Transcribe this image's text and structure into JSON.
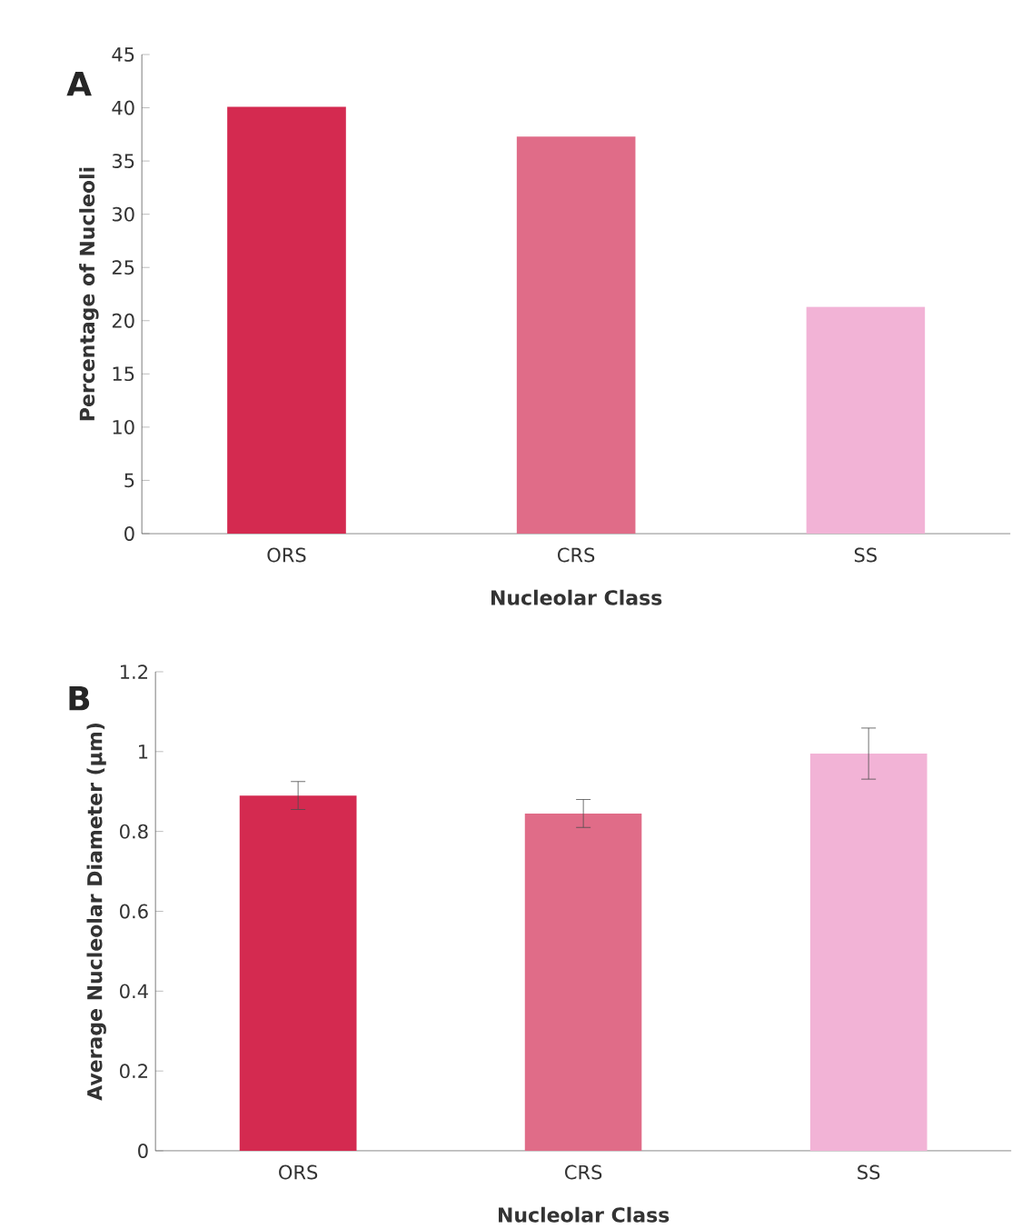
{
  "chart_data": [
    {
      "type": "bar",
      "categories": [
        "ORS",
        "CRS",
        "SS"
      ],
      "values": [
        40.1,
        37.3,
        21.3
      ],
      "colors": [
        "#d42a50",
        "#e06c88",
        "#f2b3d6"
      ],
      "xlabel": "Nucleolar Class",
      "ylabel": "Percentage of Nucleoli",
      "ylim": [
        0,
        45
      ],
      "yticks": [
        0,
        5,
        10,
        15,
        20,
        25,
        30,
        35,
        40,
        45
      ],
      "annotations": [
        "A"
      ]
    },
    {
      "type": "bar",
      "categories": [
        "ORS",
        "CRS",
        "SS"
      ],
      "values": [
        0.89,
        0.845,
        0.995
      ],
      "errors": [
        0.035,
        0.035,
        0.064
      ],
      "colors": [
        "#d42a50",
        "#e06c88",
        "#f2b3d6"
      ],
      "xlabel": "Nucleolar Class",
      "ylabel": "Average Nucleolar Diameter (µm)",
      "ylim": [
        0,
        1.2
      ],
      "yticks": [
        0,
        0.2,
        0.4,
        0.6,
        0.8,
        1,
        1.2
      ],
      "annotations": [
        "B"
      ]
    }
  ]
}
